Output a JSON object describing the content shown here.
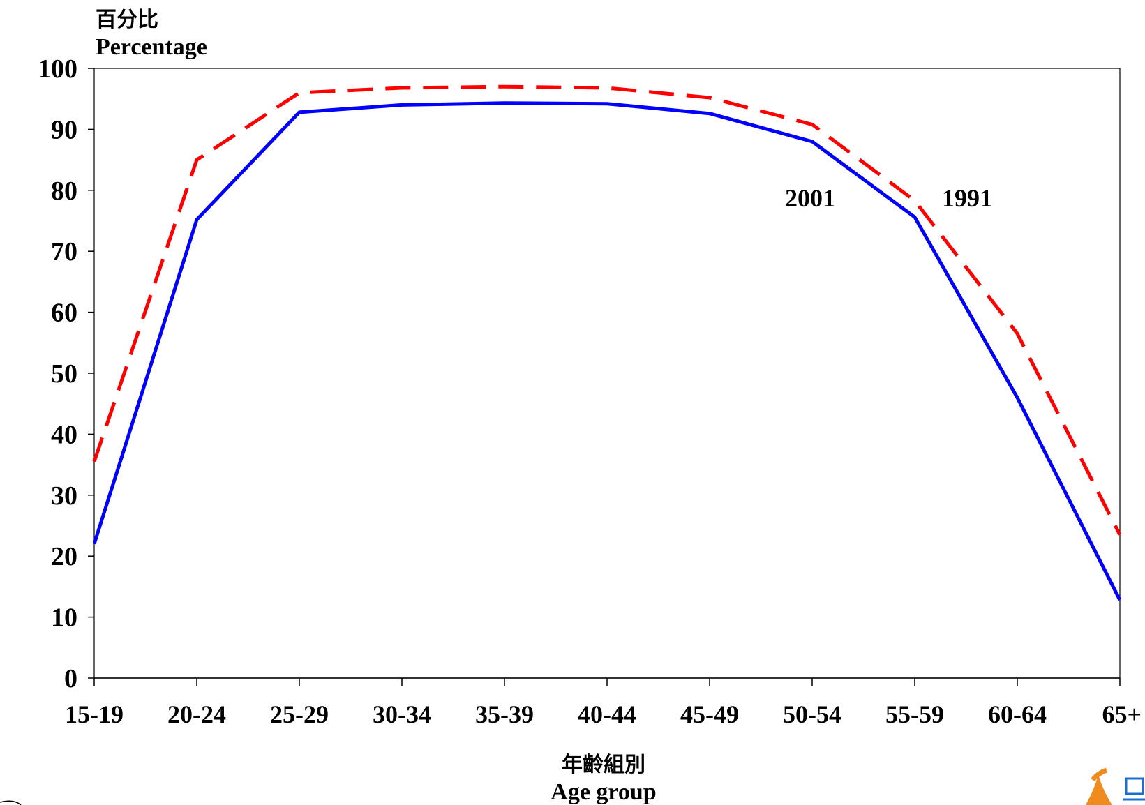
{
  "chart_data": {
    "type": "line",
    "ylabel_zh": "百分比",
    "ylabel": "Percentage",
    "xlabel_zh": "年齡組別",
    "xlabel": "Age group",
    "categories": [
      "15-19",
      "20-24",
      "25-29",
      "30-34",
      "35-39",
      "40-44",
      "45-49",
      "50-54",
      "55-59",
      "60-64",
      "65+"
    ],
    "yticks": [
      "0",
      "10",
      "20",
      "30",
      "40",
      "50",
      "60",
      "70",
      "80",
      "90",
      "100"
    ],
    "ylim": [
      0,
      100
    ],
    "grid": false,
    "series": [
      {
        "name": "1991",
        "color": "#ff0000",
        "style": "dashed",
        "values": [
          35.5,
          85,
          96,
          96.8,
          97,
          96.8,
          95.2,
          90.8,
          78.3,
          56.5,
          23.5
        ]
      },
      {
        "name": "2001",
        "color": "#0000ff",
        "style": "solid",
        "values": [
          22,
          75.2,
          92.8,
          94,
          94.3,
          94.2,
          92.6,
          88,
          75.6,
          46,
          12.8
        ]
      }
    ]
  }
}
